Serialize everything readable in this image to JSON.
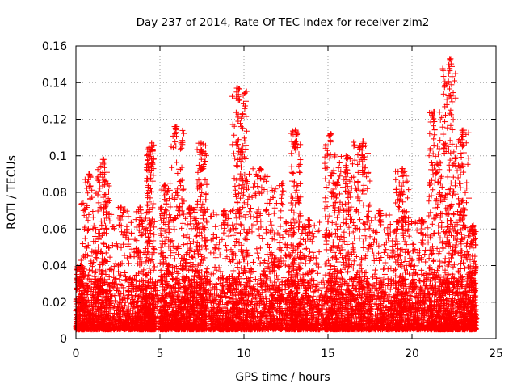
{
  "chart_data": {
    "type": "scatter",
    "title": "Day 237 of 2014, Rate Of TEC Index for receiver zim2",
    "xlabel": "GPS time / hours",
    "ylabel": "ROTI / TECUs",
    "xlim": [
      0,
      25
    ],
    "ylim": [
      0,
      0.16
    ],
    "x_ticks": [
      0,
      5,
      10,
      15,
      20,
      25
    ],
    "x_tick_labels": [
      "0",
      "5",
      "10",
      "15",
      "20",
      "25"
    ],
    "y_ticks": [
      0,
      0.02,
      0.04,
      0.06,
      0.08,
      0.1,
      0.12,
      0.14,
      0.16
    ],
    "y_tick_labels": [
      "0",
      "0.02",
      "0.04",
      "0.06",
      "0.08",
      "0.1",
      "0.12",
      "0.14",
      "0.16"
    ],
    "grid": true,
    "marker": "plus",
    "color": "#ff0000",
    "series": [
      {
        "name": "zim2",
        "bursts": [
          {
            "x": [
              0.0,
              0.5
            ],
            "peak": 0.04
          },
          {
            "x": [
              0.3,
              1.3
            ],
            "peak": 0.09
          },
          {
            "x": [
              1.3,
              2.0
            ],
            "peak": 0.098
          },
          {
            "x": [
              2.0,
              3.5
            ],
            "peak": 0.072
          },
          {
            "x": [
              3.5,
              4.2
            ],
            "peak": 0.072
          },
          {
            "x": [
              4.2,
              4.7
            ],
            "peak": 0.107
          },
          {
            "x": [
              5.0,
              5.6
            ],
            "peak": 0.084
          },
          {
            "x": [
              5.6,
              6.5
            ],
            "peak": 0.116
          },
          {
            "x": [
              6.5,
              7.2
            ],
            "peak": 0.072
          },
          {
            "x": [
              7.2,
              7.8
            ],
            "peak": 0.107
          },
          {
            "x": [
              8.0,
              9.3
            ],
            "peak": 0.07
          },
          {
            "x": [
              9.3,
              10.2
            ],
            "peak": 0.137
          },
          {
            "x": [
              10.2,
              11.5
            ],
            "peak": 0.093
          },
          {
            "x": [
              11.5,
              12.8
            ],
            "peak": 0.085
          },
          {
            "x": [
              12.8,
              13.4
            ],
            "peak": 0.114
          },
          {
            "x": [
              13.4,
              14.5
            ],
            "peak": 0.065
          },
          {
            "x": [
              14.8,
              15.6
            ],
            "peak": 0.112
          },
          {
            "x": [
              15.6,
              16.5
            ],
            "peak": 0.1
          },
          {
            "x": [
              16.5,
              17.5
            ],
            "peak": 0.108
          },
          {
            "x": [
              17.5,
              19.0
            ],
            "peak": 0.07
          },
          {
            "x": [
              19.0,
              19.8
            ],
            "peak": 0.093
          },
          {
            "x": [
              19.8,
              21.0
            ],
            "peak": 0.065
          },
          {
            "x": [
              21.0,
              21.8
            ],
            "peak": 0.124
          },
          {
            "x": [
              21.8,
              22.6
            ],
            "peak": 0.153
          },
          {
            "x": [
              22.6,
              23.4
            ],
            "peak": 0.114
          },
          {
            "x": [
              23.4,
              23.8
            ],
            "peak": 0.062
          }
        ],
        "baseline": [
          0.005,
          0.033
        ],
        "x_range": [
          0.0,
          23.85
        ]
      }
    ]
  }
}
